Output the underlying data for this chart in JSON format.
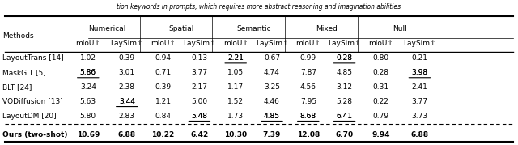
{
  "title_text": "tion keywords in prompts, which requires more abstract reasoning and imagination abilities",
  "columns": [
    "Methods",
    "Numerical\nmIoU↑",
    "Numerical\nLaySim↑",
    "Spatial\nmIoU↑",
    "Spatial\nLaySim↑",
    "Semantic\nmIoU↑",
    "Semantic\nLaySim↑",
    "Mixed\nmIoU↑",
    "Mixed\nLaySim↑",
    "Null\nmIoU↑",
    "Null\nLaySim↑"
  ],
  "header_groups": [
    "Numerical",
    "Spatial",
    "Semantic",
    "Mixed",
    "Null"
  ],
  "sub_headers": [
    "mIoU↑",
    "LaySim↑"
  ],
  "rows": [
    [
      "LayoutTrans [14]",
      "1.02",
      "0.39",
      "0.94",
      "0.13",
      "2.21",
      "0.67",
      "0.99",
      "0.28",
      "0.80",
      "0.21"
    ],
    [
      "MaskGIT [5]",
      "5.86",
      "3.01",
      "0.71",
      "3.77",
      "1.05",
      "4.74",
      "7.87",
      "4.85",
      "0.28",
      "3.98"
    ],
    [
      "BLT [24]",
      "3.24",
      "2.38",
      "0.39",
      "2.17",
      "1.17",
      "3.25",
      "4.56",
      "3.12",
      "0.31",
      "2.41"
    ],
    [
      "VQDiffusion [13]",
      "5.63",
      "3.44",
      "1.21",
      "5.00",
      "1.52",
      "4.46",
      "7.95",
      "5.28",
      "0.22",
      "3.77"
    ],
    [
      "LayoutDM [20]",
      "5.80",
      "2.83",
      "0.84",
      "5.48",
      "1.73",
      "4.85",
      "8.68",
      "6.41",
      "0.79",
      "3.73"
    ],
    [
      "Ours (two-shot)",
      "10.69",
      "6.88",
      "10.22",
      "6.42",
      "10.30",
      "7.39",
      "12.08",
      "6.70",
      "9.94",
      "6.88"
    ]
  ],
  "underlined": [
    [
      0,
      5
    ],
    [
      0,
      8
    ],
    [
      1,
      1
    ],
    [
      1,
      10
    ],
    [
      3,
      2
    ],
    [
      4,
      4
    ],
    [
      4,
      6
    ],
    [
      4,
      7
    ],
    [
      4,
      8
    ]
  ],
  "bold_row": 5,
  "dashed_before_row": 5
}
